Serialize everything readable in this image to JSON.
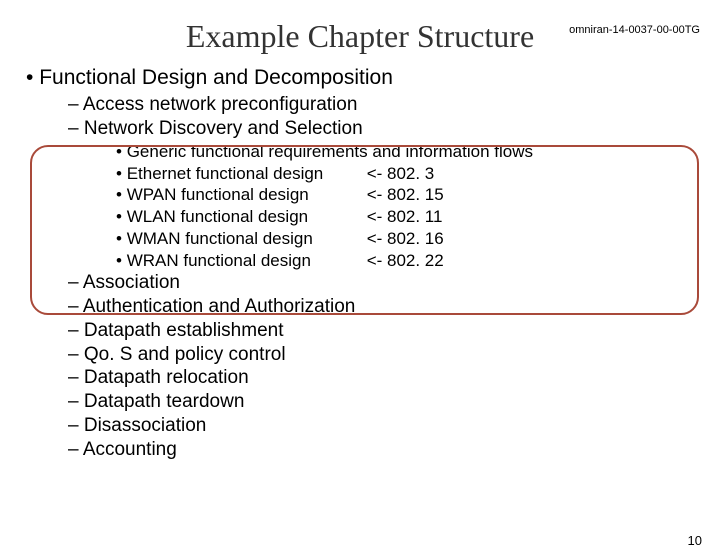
{
  "doc_id": "omniran-14-0037-00-00TG",
  "title": "Example Chapter Structure",
  "page_number": "10",
  "colors": {
    "title_color": "#333333",
    "callout_border": "#a94a3a",
    "text": "#000000",
    "background": "#ffffff"
  },
  "font_sizes": {
    "title": 32,
    "level1": 21,
    "level2": 19,
    "level3": 17,
    "doc_id": 11,
    "page_number": 13
  },
  "level1": "Functional Design and Decomposition",
  "level2a": [
    "Access network preconfiguration",
    "Network Discovery and Selection"
  ],
  "level3": [
    {
      "label": "Generic functional requirements and information flows",
      "ref": ""
    },
    {
      "label": "Ethernet functional design",
      "ref": "<- 802. 3"
    },
    {
      "label": "WPAN functional design",
      "ref": "<- 802. 15"
    },
    {
      "label": "WLAN functional design",
      "ref": "<- 802. 11"
    },
    {
      "label": "WMAN functional design",
      "ref": "<- 802. 16"
    },
    {
      "label": "WRAN functional design",
      "ref": "<- 802. 22"
    }
  ],
  "level2b": [
    "Association",
    "Authentication and Authorization",
    "Datapath establishment",
    "Qo. S and policy control",
    "Datapath relocation",
    "Datapath teardown",
    "Disassociation",
    "Accounting"
  ]
}
